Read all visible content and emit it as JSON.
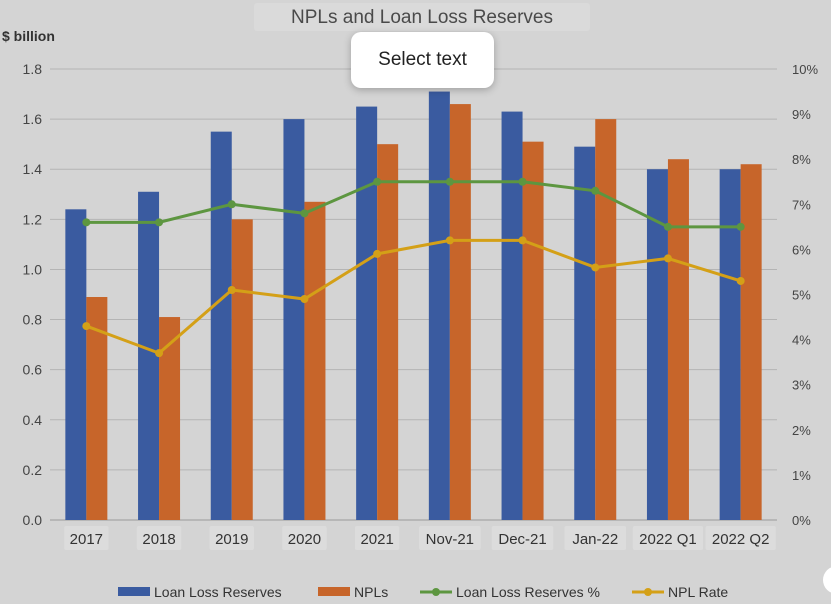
{
  "overlay": {
    "select_text_label": "Select text"
  },
  "chart_data": {
    "type": "bar",
    "title": "NPLs and Loan Loss Reserves",
    "ylabel": "$ billion",
    "ylim": [
      0,
      1.8
    ],
    "y2lim": [
      0,
      10
    ],
    "y_ticks": [
      "0.0",
      "0.2",
      "0.4",
      "0.6",
      "0.8",
      "1.0",
      "1.2",
      "1.4",
      "1.6",
      "1.8"
    ],
    "y2_ticks": [
      "0%",
      "1%",
      "2%",
      "3%",
      "4%",
      "5%",
      "6%",
      "7%",
      "8%",
      "9%",
      "10%"
    ],
    "categories": [
      "2017",
      "2018",
      "2019",
      "2020",
      "2021",
      "Nov-21",
      "Dec-21",
      "Jan-22",
      "2022 Q1",
      "2022 Q2"
    ],
    "series": [
      {
        "name": "Loan Loss Reserves",
        "kind": "bar",
        "axis": "left",
        "color": "#3a5ba0",
        "values": [
          1.24,
          1.31,
          1.55,
          1.6,
          1.65,
          1.71,
          1.63,
          1.49,
          1.4,
          1.4
        ]
      },
      {
        "name": "NPLs",
        "kind": "bar",
        "axis": "left",
        "color": "#c7652a",
        "values": [
          0.89,
          0.81,
          1.2,
          1.27,
          1.5,
          1.66,
          1.51,
          1.6,
          1.44,
          1.42
        ]
      },
      {
        "name": "Loan Loss Reserves %",
        "kind": "line",
        "axis": "right",
        "color": "#5d9640",
        "values": [
          6.6,
          6.6,
          7.0,
          6.8,
          7.5,
          7.5,
          7.5,
          7.3,
          6.5,
          6.5
        ]
      },
      {
        "name": "NPL Rate",
        "kind": "line",
        "axis": "right",
        "color": "#d4a017",
        "values": [
          4.3,
          3.7,
          5.1,
          4.9,
          5.9,
          6.2,
          6.2,
          5.6,
          5.8,
          5.3
        ]
      }
    ],
    "grid": true,
    "legend_position": "bottom"
  }
}
